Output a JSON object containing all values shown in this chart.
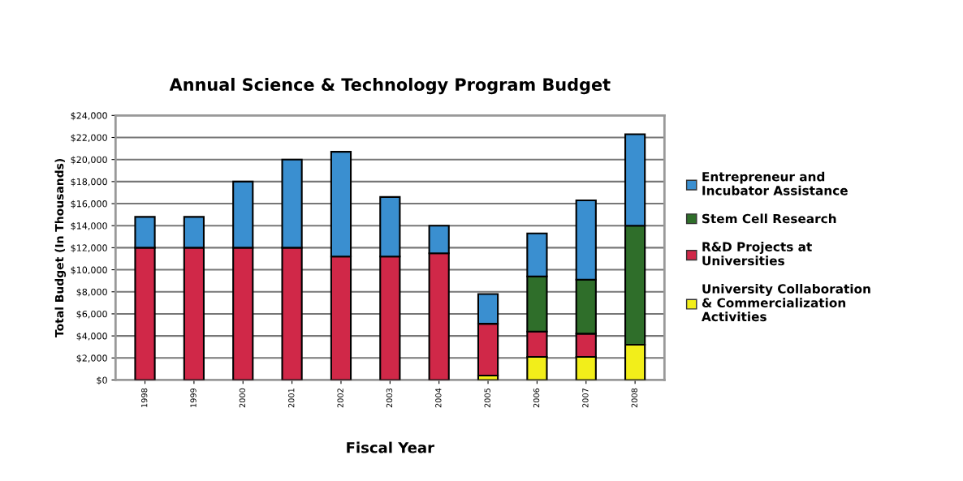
{
  "chart_data": {
    "type": "bar",
    "stacked": true,
    "title": "Annual Science & Technology Program Budget",
    "xlabel": "Fiscal Year",
    "ylabel": "Total Budget (In Thousands)",
    "categories": [
      "1998",
      "1999",
      "2000",
      "2001",
      "2002",
      "2003",
      "2004",
      "2005",
      "2006",
      "2007",
      "2008"
    ],
    "series": [
      {
        "name": "University Collaboration & Commercialization Activities",
        "color": "#f2ee1a",
        "values": [
          null,
          null,
          null,
          null,
          null,
          null,
          null,
          400,
          2100,
          2100,
          3200
        ]
      },
      {
        "name": "R&D Projects at Universities",
        "color": "#d02848",
        "values": [
          12000,
          12000,
          12000,
          12000,
          11200,
          11200,
          11500,
          4700,
          2300,
          2100,
          null
        ]
      },
      {
        "name": "Stem Cell Research",
        "color": "#2f6e2a",
        "values": [
          null,
          null,
          null,
          null,
          null,
          null,
          null,
          null,
          5000,
          4900,
          10800
        ]
      },
      {
        "name": "Entrepreneur and Incubator Assistance",
        "color": "#3a8fd0",
        "values": [
          2800,
          2800,
          6000,
          8000,
          9500,
          5400,
          2500,
          2700,
          3900,
          7200,
          8300
        ]
      }
    ],
    "ylim": [
      0,
      24000
    ],
    "yticks": [
      {
        "value": 0,
        "label": "$0"
      },
      {
        "value": 2000,
        "label": "$2,000"
      },
      {
        "value": 4000,
        "label": "$4,000"
      },
      {
        "value": 6000,
        "label": "$6,000"
      },
      {
        "value": 8000,
        "label": "$8,000"
      },
      {
        "value": 10000,
        "label": "$10,000"
      },
      {
        "value": 12000,
        "label": "$12,000"
      },
      {
        "value": 14000,
        "label": "$14,000"
      },
      {
        "value": 16000,
        "label": "$16,000"
      },
      {
        "value": 18000,
        "label": "$18,000"
      },
      {
        "value": 20000,
        "label": "$20,000"
      },
      {
        "value": 22000,
        "label": "$22,000"
      },
      {
        "value": 24000,
        "label": "$24,000"
      }
    ],
    "grid": "y",
    "legend": "right"
  }
}
